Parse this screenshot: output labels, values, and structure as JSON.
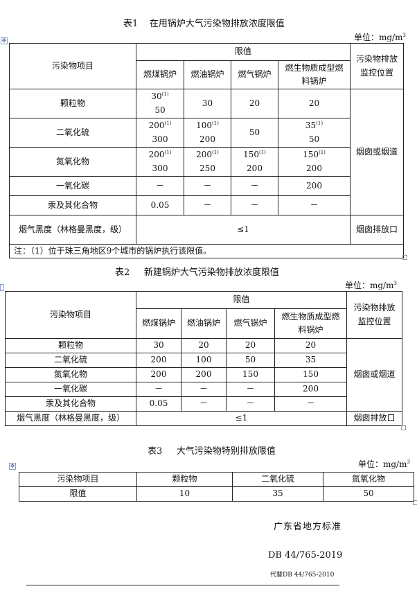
{
  "table1": {
    "title": "表1    在用锅炉大气污染物排放浓度限值",
    "unit": "单位：mg/m",
    "unit_sup": "3",
    "col_item": "污染物项目",
    "col_limit": "限值",
    "col_location": "污染物排放监控位置",
    "boilers": [
      "燃煤锅炉",
      "燃油锅炉",
      "燃气锅炉",
      "燃生物质成型燃料锅炉"
    ],
    "rows": [
      {
        "item": "颗粒物",
        "cells": [
          {
            "a": "30",
            "sup": "(1)",
            "b": "50"
          },
          {
            "a": "30"
          },
          {
            "a": "20"
          },
          {
            "a": "20"
          }
        ]
      },
      {
        "item": "二氧化硫",
        "cells": [
          {
            "a": "200",
            "sup": "(1)",
            "b": "300"
          },
          {
            "a": "100",
            "sup": "(1)",
            "b": "200"
          },
          {
            "a": "50"
          },
          {
            "a": "35",
            "sup": "(1)",
            "b": "50"
          }
        ]
      },
      {
        "item": "氮氧化物",
        "cells": [
          {
            "a": "200",
            "sup": "(1)",
            "b": "300"
          },
          {
            "a": "200",
            "sup": "(1)",
            "b": "250"
          },
          {
            "a": "150",
            "sup": "(1)",
            "b": "200"
          },
          {
            "a": "150",
            "sup": "(1)",
            "b": "200"
          }
        ]
      },
      {
        "item": "一氧化碳",
        "cells": [
          {
            "a": "－"
          },
          {
            "a": "－"
          },
          {
            "a": "－"
          },
          {
            "a": "200"
          }
        ]
      },
      {
        "item": "汞及其化合物",
        "cells": [
          {
            "a": "0.05"
          },
          {
            "a": "－"
          },
          {
            "a": "－"
          },
          {
            "a": "－"
          }
        ]
      }
    ],
    "location_main": "烟囱或烟道",
    "smoke_item": "烟气黑度（林格曼黑度，级）",
    "smoke_value": "≤1",
    "smoke_location": "烟囱排放口",
    "note": "注：（1）位于珠三角地区9个城市的锅炉执行该限值。"
  },
  "table2": {
    "title": "表2     新建锅炉大气污染物排放浓度限值",
    "unit": "单位：mg/m",
    "unit_sup": "3",
    "col_item": "污染物项目",
    "col_limit": "限值",
    "col_location": "污染物排放监控位置",
    "boilers": [
      "燃煤锅炉",
      "燃油锅炉",
      "燃气锅炉",
      "燃生物质成型燃料锅炉"
    ],
    "rows": [
      {
        "item": "颗粒物",
        "cells": [
          "30",
          "20",
          "20",
          "20"
        ]
      },
      {
        "item": "二氧化硫",
        "cells": [
          "200",
          "100",
          "50",
          "35"
        ]
      },
      {
        "item": "氮氧化物",
        "cells": [
          "200",
          "200",
          "150",
          "150"
        ]
      },
      {
        "item": "一氧化碳",
        "cells": [
          "－",
          "－",
          "－",
          "200"
        ]
      },
      {
        "item": "汞及其化合物",
        "cells": [
          "0.05",
          "－",
          "－",
          "－"
        ]
      }
    ],
    "location_main": "烟囱或烟道",
    "smoke_item": "烟气黑度（林格曼黑度，级）",
    "smoke_value": "≤1",
    "smoke_location": "烟囱排放口"
  },
  "table3": {
    "title": "表3     大气污染物特别排放限值",
    "unit": "单位：mg/m",
    "unit_sup": "3",
    "headers": [
      "污染物项目",
      "颗粒物",
      "二氧化硫",
      "氮氧化物"
    ],
    "values": [
      "限值",
      "10",
      "35",
      "50"
    ]
  },
  "footer": {
    "org": "广东省地方标准",
    "code": "DB 44/765-2019",
    "replaces": "代替DB 44/765-2010"
  }
}
